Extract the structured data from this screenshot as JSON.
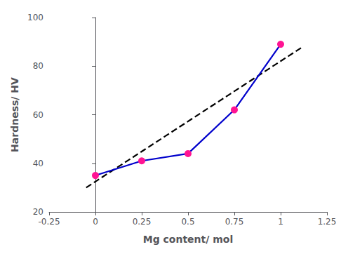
{
  "chart_data": {
    "type": "line",
    "xlabel": "Mg content/ mol",
    "ylabel": "Hardness/ HV",
    "xlim": [
      -0.25,
      1.25
    ],
    "xticks": [
      -0.25,
      0,
      0.25,
      0.5,
      0.75,
      1,
      1.25
    ],
    "ylim": [
      20,
      100
    ],
    "yticks": [
      20,
      40,
      60,
      80,
      100
    ],
    "grid": false,
    "series": [
      {
        "x": [
          -0.05,
          1.12
        ],
        "values": [
          30,
          88
        ],
        "color": "#000000",
        "line_style": "dashed"
      },
      {
        "x": [
          0,
          0.25,
          0.5,
          0.75,
          1.0
        ],
        "values": [
          35,
          41,
          44,
          62,
          89
        ],
        "color": "#0000CC",
        "line_style": "solid",
        "marker": "circle",
        "colors": [
          "#FF1493",
          "#FF1493",
          "#FF1493",
          "#FF1493",
          "#FF1493"
        ]
      }
    ]
  }
}
